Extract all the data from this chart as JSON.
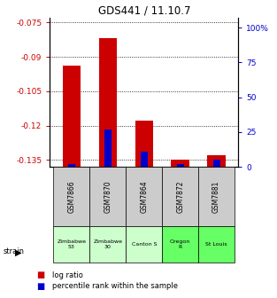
{
  "title": "GDS441 / 11.10.7",
  "samples": [
    "GSM7866",
    "GSM7870",
    "GSM7864",
    "GSM7872",
    "GSM7881"
  ],
  "strains": [
    "Zimbabwe\n53",
    "Zimbabwe\n30",
    "Canton S",
    "Oregon\nR",
    "St Louis"
  ],
  "strain_colors": [
    "#ccffcc",
    "#ccffcc",
    "#ccffcc",
    "#66ff66",
    "#66ff66"
  ],
  "log_ratios": [
    -0.094,
    -0.082,
    -0.118,
    -0.135,
    -0.133
  ],
  "percentile_ranks": [
    2,
    25,
    10,
    2,
    5
  ],
  "ylim_left": [
    -0.138,
    -0.073
  ],
  "yticks_left": [
    -0.075,
    -0.09,
    -0.105,
    -0.12,
    -0.135
  ],
  "ylim_right": [
    0,
    107
  ],
  "yticks_right": [
    0,
    25,
    50,
    75,
    100
  ],
  "ytick_labels_right": [
    "0",
    "25",
    "50",
    "75",
    "100%"
  ],
  "bar_width": 0.5,
  "blue_bar_width": 0.2,
  "red_color": "#cc0000",
  "blue_color": "#0000cc",
  "left_label_color": "#cc0000",
  "right_label_color": "#0000cc",
  "bg_color": "#ffffff",
  "sample_bg": "#cccccc",
  "legend_red_label": "log ratio",
  "legend_blue_label": "percentile rank within the sample"
}
